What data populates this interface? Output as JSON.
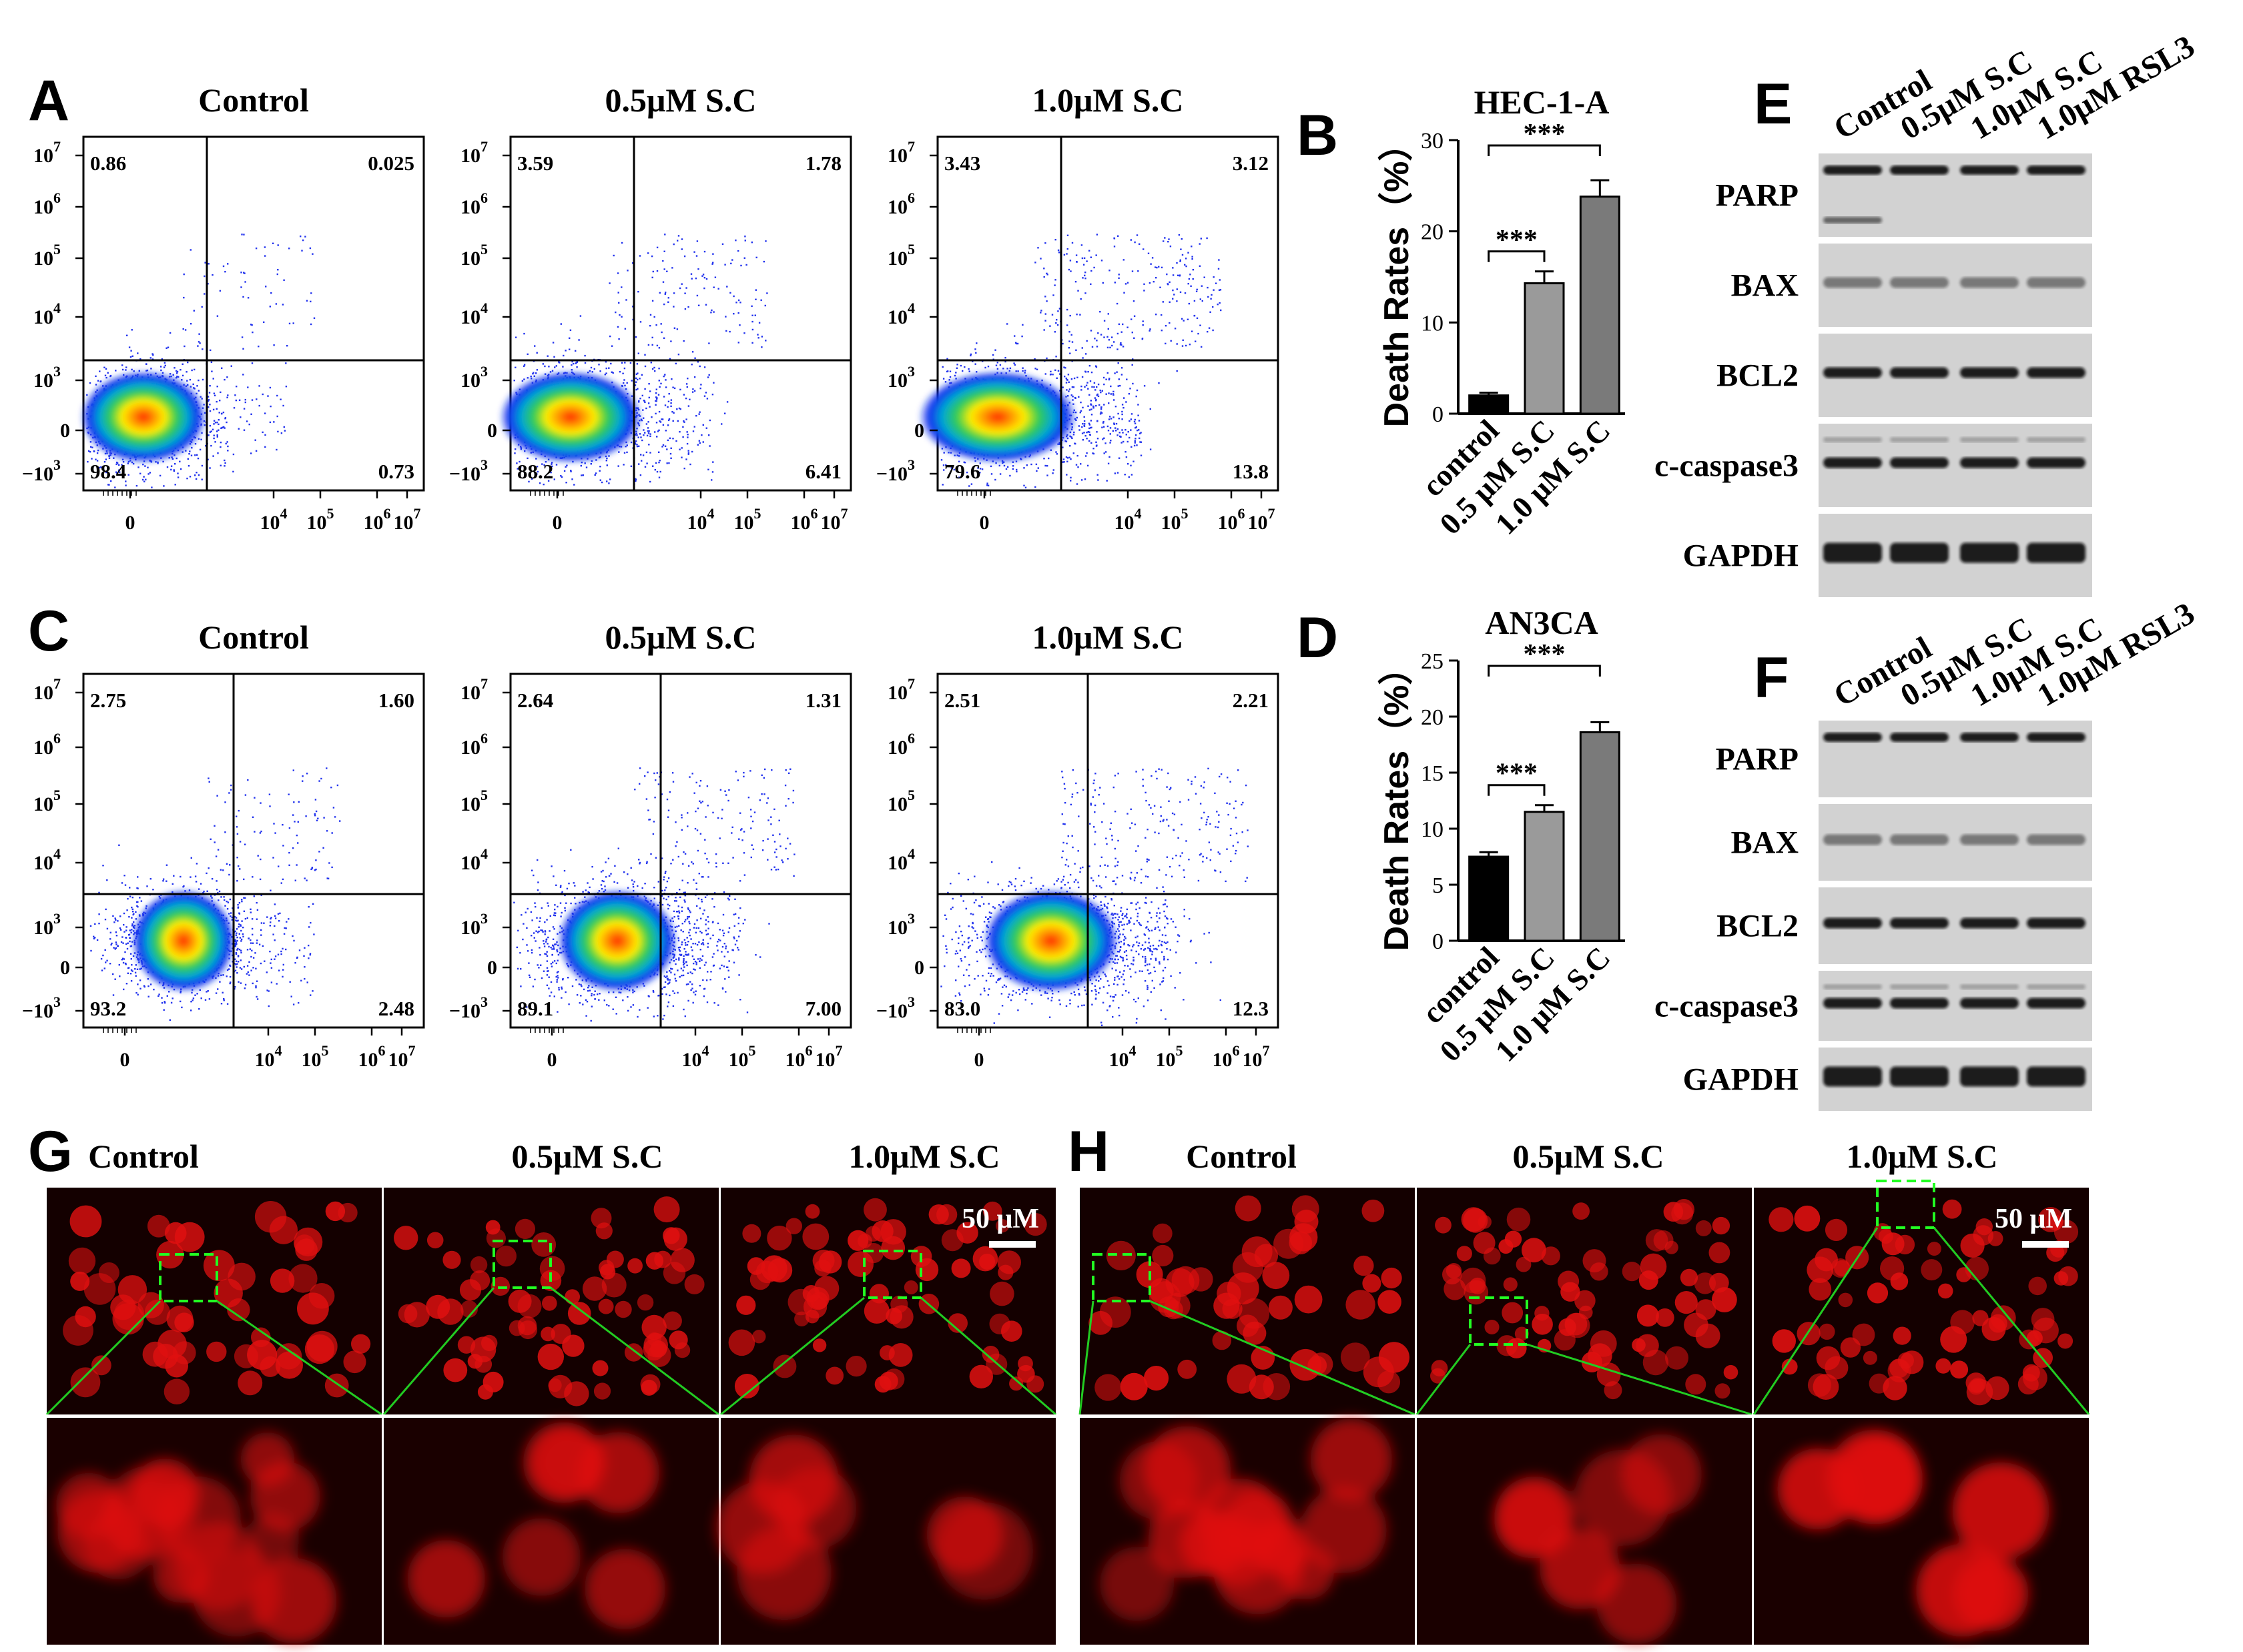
{
  "panel_letters": {
    "a": "A",
    "b": "B",
    "c": "C",
    "d": "D",
    "e": "E",
    "f": "F",
    "g": "G",
    "h": "H"
  },
  "colors": {
    "bar_control": "#000000",
    "bar_low": "#9a9a9a",
    "bar_high": "#7a7a7a",
    "blot_bg": "#d2d2d2",
    "band": "#111111",
    "fluor_bg": "#140000",
    "fluor_cell": "#e01010",
    "roi_box": "#22ff22",
    "zoom_line": "#22cc22"
  },
  "flow_axis": {
    "y_ticks": [
      {
        "base": "10",
        "sup": "7"
      },
      {
        "base": "10",
        "sup": "6"
      },
      {
        "base": "10",
        "sup": "5"
      },
      {
        "base": "10",
        "sup": "4"
      },
      {
        "base": "10",
        "sup": "3"
      },
      {
        "base": "0",
        "sup": ""
      },
      {
        "base": "−10",
        "sup": "3"
      }
    ],
    "x_ticks": [
      {
        "base": "0",
        "sup": ""
      },
      {
        "base": "10",
        "sup": "4"
      },
      {
        "base": "10",
        "sup": "5"
      },
      {
        "base": "10",
        "sup": "6"
      },
      {
        "base": "10",
        "sup": "7"
      }
    ]
  },
  "chart_data": [
    {
      "type": "scatter",
      "panel": "A",
      "title": "Control",
      "quadrants": {
        "upper_left": "0.86",
        "upper_right": "0.025",
        "lower_left": "98.4",
        "lower_right": "0.73"
      }
    },
    {
      "type": "scatter",
      "panel": "A",
      "title": "0.5μM S.C",
      "quadrants": {
        "upper_left": "3.59",
        "upper_right": "1.78",
        "lower_left": "88.2",
        "lower_right": "6.41"
      }
    },
    {
      "type": "scatter",
      "panel": "A",
      "title": "1.0μM S.C",
      "quadrants": {
        "upper_left": "3.43",
        "upper_right": "3.12",
        "lower_left": "79.6",
        "lower_right": "13.8"
      }
    },
    {
      "type": "scatter",
      "panel": "C",
      "title": "Control",
      "quadrants": {
        "upper_left": "2.75",
        "upper_right": "1.60",
        "lower_left": "93.2",
        "lower_right": "2.48"
      }
    },
    {
      "type": "scatter",
      "panel": "C",
      "title": "0.5μM S.C",
      "quadrants": {
        "upper_left": "2.64",
        "upper_right": "1.31",
        "lower_left": "89.1",
        "lower_right": "7.00"
      }
    },
    {
      "type": "scatter",
      "panel": "C",
      "title": "1.0μM S.C",
      "quadrants": {
        "upper_left": "2.51",
        "upper_right": "2.21",
        "lower_left": "83.0",
        "lower_right": "12.3"
      }
    },
    {
      "type": "bar",
      "panel": "B",
      "title": "HEC-1-A",
      "ylabel": "Death Rates（%）",
      "categories": [
        "control",
        "0.5 μM S.C",
        "1.0 μM S.C"
      ],
      "values": [
        2.0,
        14.3,
        23.8
      ],
      "errors": [
        0.3,
        1.3,
        1.8
      ],
      "ylim": [
        0,
        30
      ],
      "yticks": [
        "0",
        "10",
        "20",
        "30"
      ],
      "significance": [
        {
          "pair": [
            0,
            1
          ],
          "label": "***"
        },
        {
          "pair": [
            0,
            2
          ],
          "label": "***"
        }
      ]
    },
    {
      "type": "bar",
      "panel": "D",
      "title": "AN3CA",
      "ylabel": "Death Rates（%）",
      "categories": [
        "control",
        "0.5 μM S.C",
        "1.0 μM S.C"
      ],
      "values": [
        7.5,
        11.5,
        18.6
      ],
      "errors": [
        0.4,
        0.6,
        0.9
      ],
      "ylim": [
        0,
        25
      ],
      "yticks": [
        "0",
        "5",
        "10",
        "15",
        "20",
        "25"
      ],
      "significance": [
        {
          "pair": [
            0,
            1
          ],
          "label": "***"
        },
        {
          "pair": [
            0,
            2
          ],
          "label": "***"
        }
      ]
    }
  ],
  "western": {
    "lanes": [
      "Control",
      "0.5μM S.C",
      "1.0μM S.C",
      "1.0μM RSL3"
    ],
    "proteins": [
      "PARP",
      "BAX",
      "BCL2",
      "c-caspase3",
      "GAPDH"
    ]
  },
  "fluorescence": {
    "conditions": [
      "Control",
      "0.5μM S.C",
      "1.0μM S.C"
    ],
    "scale_bar": "50 μM"
  }
}
